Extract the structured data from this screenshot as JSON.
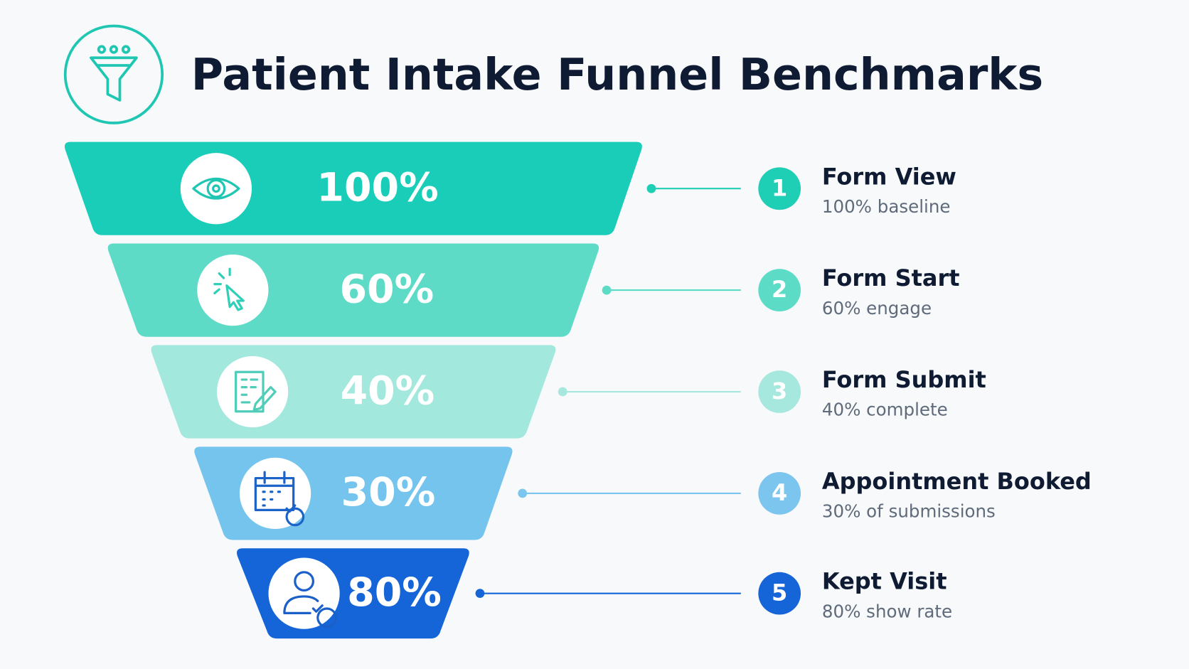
{
  "header": {
    "title": "Patient Intake Funnel Benchmarks"
  },
  "stages": [
    {
      "percent": "100%",
      "step": "1",
      "label": "Form View",
      "detail": "100% baseline"
    },
    {
      "percent": "60%",
      "step": "2",
      "label": "Form Start",
      "detail": "60% engage"
    },
    {
      "percent": "40%",
      "step": "3",
      "label": "Form Submit",
      "detail": "40% complete"
    },
    {
      "percent": "30%",
      "step": "4",
      "label": "Appointment Booked",
      "detail": "30% of submissions"
    },
    {
      "percent": "80%",
      "step": "5",
      "label": "Kept Visit",
      "detail": "80% show rate"
    }
  ]
}
